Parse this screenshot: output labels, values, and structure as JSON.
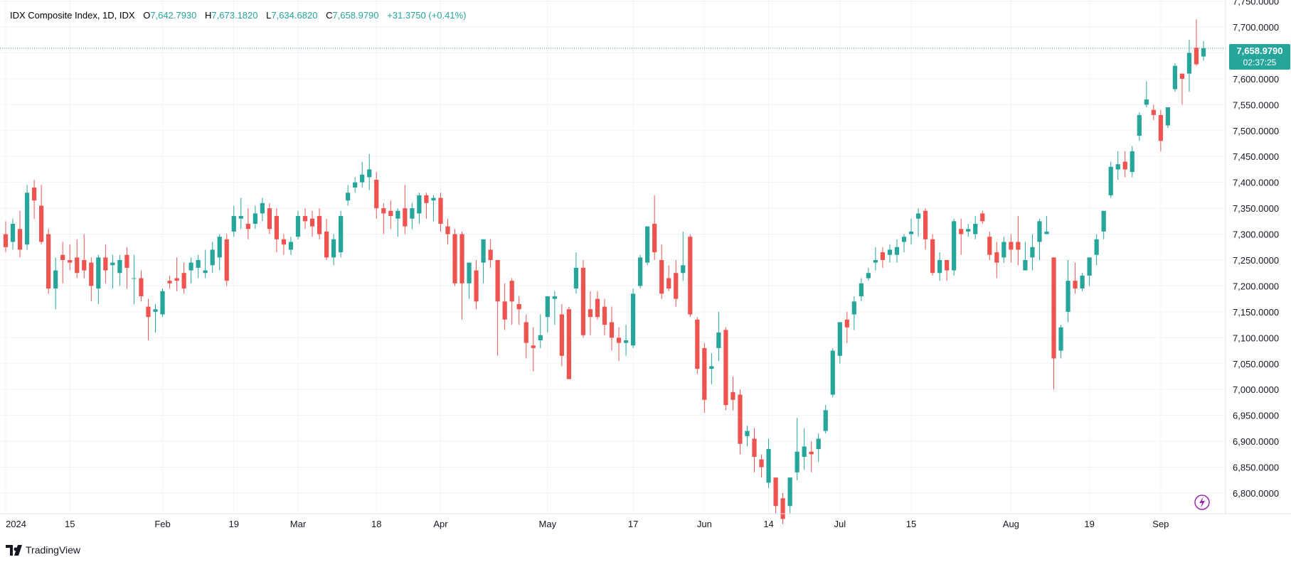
{
  "header": {
    "symbol": "IDX Composite Index, 1D, IDX",
    "open_label": "O",
    "open_value": "7,642.7930",
    "high_label": "H",
    "high_value": "7,673.1820",
    "low_label": "L",
    "low_value": "7,634.6820",
    "close_label": "C",
    "close_value": "7,658.9790",
    "change": "+31.3750 (+0.41%)"
  },
  "price_badge": {
    "price": "7,658.9790",
    "countdown": "02:37:25"
  },
  "branding": {
    "name": "TradingView"
  },
  "colors": {
    "up": "#26a69a",
    "down": "#ef5350",
    "grid": "#f0f3fa",
    "text": "#131722",
    "last_price_line": "#26a69a",
    "event_icon": "#9c27b0"
  },
  "chart_data": {
    "type": "candlestick",
    "title": "IDX Composite Index, 1D, IDX",
    "y_ticks": [
      "6,800.0000",
      "6,850.0000",
      "6,900.0000",
      "6,950.0000",
      "7,000.0000",
      "7,050.0000",
      "7,100.0000",
      "7,150.0000",
      "7,200.0000",
      "7,250.0000",
      "7,300.0000",
      "7,350.0000",
      "7,400.0000",
      "7,450.0000",
      "7,500.0000",
      "7,550.0000",
      "7,600.0000",
      "7,650.0000",
      "7,700.0000",
      "7,750.0000"
    ],
    "x_ticks": [
      {
        "label": "2024",
        "index": 0
      },
      {
        "label": "15",
        "index": 9
      },
      {
        "label": "Feb",
        "index": 22
      },
      {
        "label": "19",
        "index": 32
      },
      {
        "label": "Mar",
        "index": 41
      },
      {
        "label": "18",
        "index": 52
      },
      {
        "label": "Apr",
        "index": 61
      },
      {
        "label": "May",
        "index": 76
      },
      {
        "label": "17",
        "index": 88
      },
      {
        "label": "Jun",
        "index": 98
      },
      {
        "label": "14",
        "index": 107
      },
      {
        "label": "Jul",
        "index": 117
      },
      {
        "label": "15",
        "index": 127
      },
      {
        "label": "Aug",
        "index": 141
      },
      {
        "label": "19",
        "index": 152
      },
      {
        "label": "Sep",
        "index": 162
      }
    ],
    "ylim": [
      6750,
      7760
    ],
    "last_price": 7658.979,
    "candles": [
      {
        "o": 7300,
        "h": 7325,
        "l": 7265,
        "c": 7275
      },
      {
        "o": 7285,
        "h": 7330,
        "l": 7270,
        "c": 7320
      },
      {
        "o": 7310,
        "h": 7345,
        "l": 7255,
        "c": 7270
      },
      {
        "o": 7280,
        "h": 7395,
        "l": 7270,
        "c": 7380
      },
      {
        "o": 7390,
        "h": 7405,
        "l": 7330,
        "c": 7365
      },
      {
        "o": 7355,
        "h": 7395,
        "l": 7280,
        "c": 7285
      },
      {
        "o": 7300,
        "h": 7310,
        "l": 7185,
        "c": 7195
      },
      {
        "o": 7195,
        "h": 7255,
        "l": 7155,
        "c": 7230
      },
      {
        "o": 7260,
        "h": 7285,
        "l": 7205,
        "c": 7250
      },
      {
        "o": 7250,
        "h": 7280,
        "l": 7230,
        "c": 7245
      },
      {
        "o": 7255,
        "h": 7290,
        "l": 7215,
        "c": 7225
      },
      {
        "o": 7250,
        "h": 7300,
        "l": 7215,
        "c": 7230
      },
      {
        "o": 7245,
        "h": 7255,
        "l": 7170,
        "c": 7200
      },
      {
        "o": 7195,
        "h": 7260,
        "l": 7165,
        "c": 7255
      },
      {
        "o": 7255,
        "h": 7280,
        "l": 7205,
        "c": 7230
      },
      {
        "o": 7240,
        "h": 7260,
        "l": 7195,
        "c": 7245
      },
      {
        "o": 7225,
        "h": 7260,
        "l": 7200,
        "c": 7250
      },
      {
        "o": 7260,
        "h": 7275,
        "l": 7195,
        "c": 7235
      },
      {
        "o": 7215,
        "h": 7260,
        "l": 7165,
        "c": 7215
      },
      {
        "o": 7215,
        "h": 7230,
        "l": 7170,
        "c": 7180
      },
      {
        "o": 7160,
        "h": 7175,
        "l": 7095,
        "c": 7140
      },
      {
        "o": 7150,
        "h": 7165,
        "l": 7110,
        "c": 7155
      },
      {
        "o": 7145,
        "h": 7195,
        "l": 7140,
        "c": 7190
      },
      {
        "o": 7210,
        "h": 7220,
        "l": 7195,
        "c": 7205
      },
      {
        "o": 7215,
        "h": 7255,
        "l": 7190,
        "c": 7210
      },
      {
        "o": 7225,
        "h": 7245,
        "l": 7185,
        "c": 7195
      },
      {
        "o": 7230,
        "h": 7255,
        "l": 7205,
        "c": 7245
      },
      {
        "o": 7235,
        "h": 7260,
        "l": 7215,
        "c": 7250
      },
      {
        "o": 7225,
        "h": 7270,
        "l": 7215,
        "c": 7230
      },
      {
        "o": 7240,
        "h": 7285,
        "l": 7225,
        "c": 7270
      },
      {
        "o": 7255,
        "h": 7300,
        "l": 7230,
        "c": 7295
      },
      {
        "o": 7290,
        "h": 7300,
        "l": 7200,
        "c": 7210
      },
      {
        "o": 7305,
        "h": 7355,
        "l": 7295,
        "c": 7335
      },
      {
        "o": 7330,
        "h": 7370,
        "l": 7310,
        "c": 7335
      },
      {
        "o": 7320,
        "h": 7350,
        "l": 7290,
        "c": 7310
      },
      {
        "o": 7320,
        "h": 7355,
        "l": 7310,
        "c": 7340
      },
      {
        "o": 7340,
        "h": 7370,
        "l": 7325,
        "c": 7360
      },
      {
        "o": 7350,
        "h": 7360,
        "l": 7300,
        "c": 7310
      },
      {
        "o": 7335,
        "h": 7350,
        "l": 7265,
        "c": 7290
      },
      {
        "o": 7290,
        "h": 7300,
        "l": 7260,
        "c": 7280
      },
      {
        "o": 7270,
        "h": 7295,
        "l": 7260,
        "c": 7285
      },
      {
        "o": 7295,
        "h": 7345,
        "l": 7290,
        "c": 7335
      },
      {
        "o": 7335,
        "h": 7350,
        "l": 7310,
        "c": 7325
      },
      {
        "o": 7330,
        "h": 7345,
        "l": 7295,
        "c": 7315
      },
      {
        "o": 7335,
        "h": 7350,
        "l": 7290,
        "c": 7300
      },
      {
        "o": 7305,
        "h": 7330,
        "l": 7250,
        "c": 7255
      },
      {
        "o": 7255,
        "h": 7300,
        "l": 7240,
        "c": 7290
      },
      {
        "o": 7265,
        "h": 7345,
        "l": 7255,
        "c": 7335
      },
      {
        "o": 7365,
        "h": 7395,
        "l": 7355,
        "c": 7380
      },
      {
        "o": 7390,
        "h": 7410,
        "l": 7380,
        "c": 7400
      },
      {
        "o": 7400,
        "h": 7440,
        "l": 7390,
        "c": 7415
      },
      {
        "o": 7410,
        "h": 7455,
        "l": 7385,
        "c": 7425
      },
      {
        "o": 7405,
        "h": 7420,
        "l": 7330,
        "c": 7350
      },
      {
        "o": 7350,
        "h": 7360,
        "l": 7300,
        "c": 7340
      },
      {
        "o": 7345,
        "h": 7365,
        "l": 7310,
        "c": 7335
      },
      {
        "o": 7330,
        "h": 7350,
        "l": 7295,
        "c": 7345
      },
      {
        "o": 7350,
        "h": 7395,
        "l": 7300,
        "c": 7315
      },
      {
        "o": 7330,
        "h": 7360,
        "l": 7310,
        "c": 7350
      },
      {
        "o": 7340,
        "h": 7380,
        "l": 7320,
        "c": 7375
      },
      {
        "o": 7375,
        "h": 7380,
        "l": 7330,
        "c": 7360
      },
      {
        "o": 7365,
        "h": 7375,
        "l": 7325,
        "c": 7370
      },
      {
        "o": 7370,
        "h": 7380,
        "l": 7305,
        "c": 7320
      },
      {
        "o": 7315,
        "h": 7330,
        "l": 7280,
        "c": 7300
      },
      {
        "o": 7300,
        "h": 7310,
        "l": 7200,
        "c": 7205
      },
      {
        "o": 7300,
        "h": 7305,
        "l": 7135,
        "c": 7205
      },
      {
        "o": 7205,
        "h": 7245,
        "l": 7175,
        "c": 7245
      },
      {
        "o": 7230,
        "h": 7250,
        "l": 7155,
        "c": 7170
      },
      {
        "o": 7245,
        "h": 7285,
        "l": 7205,
        "c": 7290
      },
      {
        "o": 7270,
        "h": 7290,
        "l": 7235,
        "c": 7250
      },
      {
        "o": 7250,
        "h": 7250,
        "l": 7065,
        "c": 7170
      },
      {
        "o": 7170,
        "h": 7205,
        "l": 7115,
        "c": 7135
      },
      {
        "o": 7210,
        "h": 7215,
        "l": 7125,
        "c": 7170
      },
      {
        "o": 7165,
        "h": 7180,
        "l": 7125,
        "c": 7155
      },
      {
        "o": 7130,
        "h": 7145,
        "l": 7060,
        "c": 7090
      },
      {
        "o": 7085,
        "h": 7120,
        "l": 7035,
        "c": 7080
      },
      {
        "o": 7095,
        "h": 7145,
        "l": 7080,
        "c": 7105
      },
      {
        "o": 7140,
        "h": 7180,
        "l": 7110,
        "c": 7180
      },
      {
        "o": 7175,
        "h": 7190,
        "l": 7125,
        "c": 7180
      },
      {
        "o": 7145,
        "h": 7165,
        "l": 7045,
        "c": 7065
      },
      {
        "o": 7155,
        "h": 7160,
        "l": 7020,
        "c": 7020
      },
      {
        "o": 7195,
        "h": 7265,
        "l": 7185,
        "c": 7235
      },
      {
        "o": 7235,
        "h": 7250,
        "l": 7100,
        "c": 7105
      },
      {
        "o": 7155,
        "h": 7190,
        "l": 7105,
        "c": 7140
      },
      {
        "o": 7175,
        "h": 7190,
        "l": 7135,
        "c": 7140
      },
      {
        "o": 7160,
        "h": 7175,
        "l": 7105,
        "c": 7125
      },
      {
        "o": 7130,
        "h": 7160,
        "l": 7075,
        "c": 7100
      },
      {
        "o": 7100,
        "h": 7120,
        "l": 7055,
        "c": 7090
      },
      {
        "o": 7090,
        "h": 7125,
        "l": 7065,
        "c": 7095
      },
      {
        "o": 7085,
        "h": 7195,
        "l": 7080,
        "c": 7185
      },
      {
        "o": 7200,
        "h": 7260,
        "l": 7195,
        "c": 7255
      },
      {
        "o": 7245,
        "h": 7315,
        "l": 7240,
        "c": 7315
      },
      {
        "o": 7320,
        "h": 7375,
        "l": 7250,
        "c": 7265
      },
      {
        "o": 7250,
        "h": 7280,
        "l": 7175,
        "c": 7185
      },
      {
        "o": 7215,
        "h": 7240,
        "l": 7190,
        "c": 7195
      },
      {
        "o": 7225,
        "h": 7250,
        "l": 7160,
        "c": 7175
      },
      {
        "o": 7225,
        "h": 7305,
        "l": 7210,
        "c": 7240
      },
      {
        "o": 7295,
        "h": 7300,
        "l": 7140,
        "c": 7145
      },
      {
        "o": 7135,
        "h": 7140,
        "l": 7030,
        "c": 7040
      },
      {
        "o": 7080,
        "h": 7090,
        "l": 6955,
        "c": 6980
      },
      {
        "o": 7040,
        "h": 7070,
        "l": 7010,
        "c": 7045
      },
      {
        "o": 7080,
        "h": 7150,
        "l": 7055,
        "c": 7110
      },
      {
        "o": 7115,
        "h": 7120,
        "l": 6960,
        "c": 6970
      },
      {
        "o": 6995,
        "h": 7025,
        "l": 6960,
        "c": 6980
      },
      {
        "o": 6990,
        "h": 7000,
        "l": 6875,
        "c": 6895
      },
      {
        "o": 6910,
        "h": 6930,
        "l": 6890,
        "c": 6920
      },
      {
        "o": 6905,
        "h": 6925,
        "l": 6840,
        "c": 6870
      },
      {
        "o": 6865,
        "h": 6875,
        "l": 6830,
        "c": 6850
      },
      {
        "o": 6820,
        "h": 6905,
        "l": 6810,
        "c": 6885
      },
      {
        "o": 6830,
        "h": 6830,
        "l": 6760,
        "c": 6775
      },
      {
        "o": 6790,
        "h": 6800,
        "l": 6740,
        "c": 6750
      },
      {
        "o": 6775,
        "h": 6830,
        "l": 6760,
        "c": 6830
      },
      {
        "o": 6840,
        "h": 6945,
        "l": 6825,
        "c": 6880
      },
      {
        "o": 6870,
        "h": 6925,
        "l": 6845,
        "c": 6890
      },
      {
        "o": 6880,
        "h": 6900,
        "l": 6840,
        "c": 6875
      },
      {
        "o": 6885,
        "h": 6915,
        "l": 6860,
        "c": 6905
      },
      {
        "o": 6920,
        "h": 6970,
        "l": 6915,
        "c": 6960
      },
      {
        "o": 6990,
        "h": 7080,
        "l": 6985,
        "c": 7075
      },
      {
        "o": 7065,
        "h": 7125,
        "l": 7050,
        "c": 7130
      },
      {
        "o": 7135,
        "h": 7150,
        "l": 7090,
        "c": 7120
      },
      {
        "o": 7145,
        "h": 7180,
        "l": 7115,
        "c": 7170
      },
      {
        "o": 7180,
        "h": 7215,
        "l": 7170,
        "c": 7205
      },
      {
        "o": 7215,
        "h": 7235,
        "l": 7210,
        "c": 7225
      },
      {
        "o": 7245,
        "h": 7275,
        "l": 7230,
        "c": 7250
      },
      {
        "o": 7265,
        "h": 7275,
        "l": 7235,
        "c": 7250
      },
      {
        "o": 7260,
        "h": 7280,
        "l": 7245,
        "c": 7270
      },
      {
        "o": 7260,
        "h": 7290,
        "l": 7245,
        "c": 7275
      },
      {
        "o": 7285,
        "h": 7300,
        "l": 7265,
        "c": 7295
      },
      {
        "o": 7300,
        "h": 7330,
        "l": 7280,
        "c": 7305
      },
      {
        "o": 7330,
        "h": 7350,
        "l": 7295,
        "c": 7340
      },
      {
        "o": 7345,
        "h": 7350,
        "l": 7270,
        "c": 7290
      },
      {
        "o": 7290,
        "h": 7300,
        "l": 7220,
        "c": 7225
      },
      {
        "o": 7225,
        "h": 7265,
        "l": 7210,
        "c": 7250
      },
      {
        "o": 7250,
        "h": 7250,
        "l": 7210,
        "c": 7230
      },
      {
        "o": 7230,
        "h": 7330,
        "l": 7220,
        "c": 7325
      },
      {
        "o": 7310,
        "h": 7330,
        "l": 7260,
        "c": 7300
      },
      {
        "o": 7305,
        "h": 7320,
        "l": 7295,
        "c": 7310
      },
      {
        "o": 7300,
        "h": 7335,
        "l": 7290,
        "c": 7320
      },
      {
        "o": 7340,
        "h": 7345,
        "l": 7320,
        "c": 7325
      },
      {
        "o": 7295,
        "h": 7305,
        "l": 7250,
        "c": 7260
      },
      {
        "o": 7265,
        "h": 7285,
        "l": 7215,
        "c": 7245
      },
      {
        "o": 7255,
        "h": 7295,
        "l": 7245,
        "c": 7285
      },
      {
        "o": 7285,
        "h": 7300,
        "l": 7245,
        "c": 7270
      },
      {
        "o": 7285,
        "h": 7335,
        "l": 7240,
        "c": 7270
      },
      {
        "o": 7230,
        "h": 7285,
        "l": 7235,
        "c": 7250
      },
      {
        "o": 7255,
        "h": 7300,
        "l": 7230,
        "c": 7275
      },
      {
        "o": 7285,
        "h": 7330,
        "l": 7250,
        "c": 7325
      },
      {
        "o": 7300,
        "h": 7335,
        "l": 7300,
        "c": 7305
      },
      {
        "o": 7255,
        "h": 7255,
        "l": 7000,
        "c": 7060
      },
      {
        "o": 7075,
        "h": 7125,
        "l": 7060,
        "c": 7120
      },
      {
        "o": 7150,
        "h": 7250,
        "l": 7130,
        "c": 7210
      },
      {
        "o": 7210,
        "h": 7245,
        "l": 7185,
        "c": 7195
      },
      {
        "o": 7195,
        "h": 7225,
        "l": 7190,
        "c": 7220
      },
      {
        "o": 7220,
        "h": 7255,
        "l": 7200,
        "c": 7255
      },
      {
        "o": 7260,
        "h": 7300,
        "l": 7240,
        "c": 7290
      },
      {
        "o": 7305,
        "h": 7345,
        "l": 7290,
        "c": 7345
      },
      {
        "o": 7375,
        "h": 7440,
        "l": 7370,
        "c": 7430
      },
      {
        "o": 7425,
        "h": 7460,
        "l": 7405,
        "c": 7435
      },
      {
        "o": 7440,
        "h": 7460,
        "l": 7410,
        "c": 7425
      },
      {
        "o": 7420,
        "h": 7470,
        "l": 7410,
        "c": 7460
      },
      {
        "o": 7490,
        "h": 7535,
        "l": 7480,
        "c": 7530
      },
      {
        "o": 7550,
        "h": 7595,
        "l": 7545,
        "c": 7560
      },
      {
        "o": 7540,
        "h": 7550,
        "l": 7520,
        "c": 7530
      },
      {
        "o": 7530,
        "h": 7540,
        "l": 7460,
        "c": 7480
      },
      {
        "o": 7510,
        "h": 7545,
        "l": 7505,
        "c": 7545
      },
      {
        "o": 7580,
        "h": 7630,
        "l": 7575,
        "c": 7625
      },
      {
        "o": 7610,
        "h": 7610,
        "l": 7550,
        "c": 7600
      },
      {
        "o": 7610,
        "h": 7675,
        "l": 7575,
        "c": 7650
      },
      {
        "o": 7660,
        "h": 7715,
        "l": 7625,
        "c": 7628
      },
      {
        "o": 7643,
        "h": 7673,
        "l": 7635,
        "c": 7659
      }
    ]
  }
}
